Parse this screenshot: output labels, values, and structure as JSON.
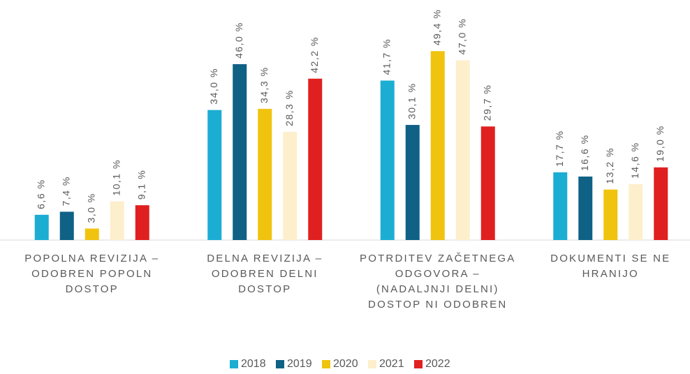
{
  "chart_data": {
    "type": "bar",
    "categories": [
      "POPOLNA REVIZIJA – ODOBREN POPOLN DOSTOP",
      "DELNA REVIZIJA – ODOBREN DELNI DOSTOP",
      "POTRDITEV ZAČETNEGA ODGOVORA – (NADALJNJI DELNI) DOSTOP NI ODOBREN",
      "DOKUMENTI SE NE HRANIJO"
    ],
    "series": [
      {
        "name": "2018",
        "color": "#1cadd3",
        "values": [
          6.6,
          34.0,
          41.7,
          17.7
        ],
        "value_labels": [
          "6,6 %",
          "34,0 %",
          "41,7 %",
          "17,7 %"
        ]
      },
      {
        "name": "2019",
        "color": "#0f6185",
        "values": [
          7.4,
          46.0,
          30.1,
          16.6
        ],
        "value_labels": [
          "7,4 %",
          "46,0 %",
          "30,1 %",
          "16,6 %"
        ]
      },
      {
        "name": "2020",
        "color": "#f0c30f",
        "values": [
          3.0,
          34.3,
          49.4,
          13.2
        ],
        "value_labels": [
          "3,0 %",
          "34,3 %",
          "49,4 %",
          "13,2 %"
        ]
      },
      {
        "name": "2021",
        "color": "#fdefcc",
        "values": [
          10.1,
          28.3,
          47.0,
          14.6
        ],
        "value_labels": [
          "10,1 %",
          "28,3 %",
          "47,0 %",
          "14,6 %"
        ]
      },
      {
        "name": "2022",
        "color": "#e02020",
        "values": [
          9.1,
          42.2,
          29.7,
          19.0
        ],
        "value_labels": [
          "9,1 %",
          "42,2 %",
          "29,7 %",
          "19,0 %"
        ]
      }
    ],
    "ylim": [
      0,
      50
    ],
    "legend": "bottom"
  }
}
